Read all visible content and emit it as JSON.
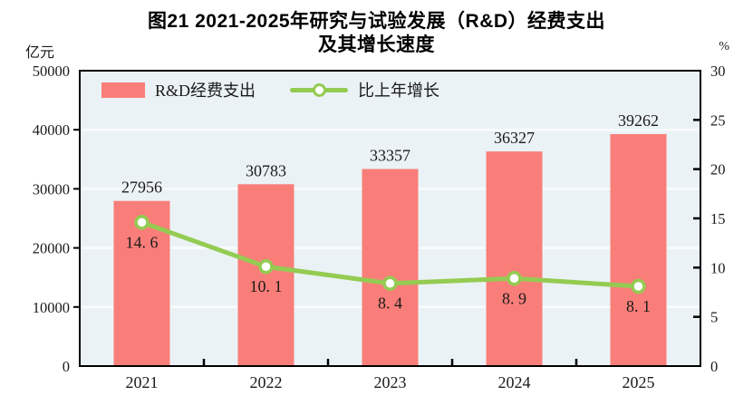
{
  "figure": {
    "title_line1": "图21  2021-2025年研究与试验发展（R&D）经费支出",
    "title_line2": "及其增长速度",
    "left_axis_unit": "亿元",
    "right_axis_unit": "%"
  },
  "legend": {
    "bar_label": "R&D经费支出",
    "line_label": "比上年增长"
  },
  "chart_data": {
    "type": "bar+line combo",
    "title": "图21 2021-2025年研究与试验发展（R&D）经费支出及其增长速度",
    "categories": [
      "2021",
      "2022",
      "2023",
      "2024",
      "2025"
    ],
    "series": [
      {
        "name": "R&D经费支出",
        "type": "bar",
        "axis": "left",
        "values": [
          27956,
          30783,
          33357,
          36327,
          39262
        ],
        "labels": [
          "27956",
          "30783",
          "33357",
          "36327",
          "39262"
        ],
        "color": "#f97e79"
      },
      {
        "name": "比上年增长",
        "type": "line",
        "axis": "right",
        "values": [
          14.6,
          10.1,
          8.4,
          8.9,
          8.1
        ],
        "labels": [
          "14. 6",
          "10. 1",
          "8. 4",
          "8. 9",
          "8. 1"
        ],
        "color": "#94cb52",
        "marker": "circle-open"
      }
    ],
    "left_axis": {
      "label": "亿元",
      "min": 0,
      "max": 50000,
      "ticks": [
        0,
        10000,
        20000,
        30000,
        40000,
        50000
      ]
    },
    "right_axis": {
      "label": "%",
      "min": 0,
      "max": 30,
      "ticks": [
        0,
        5,
        10,
        15,
        20,
        25,
        30
      ]
    },
    "grid": true,
    "gridline_interval_left_axis": 10000,
    "legend_position": "top-left-inside",
    "colors": {
      "bar": "#f97e79",
      "line": "#94cb52",
      "marker_fill": "#ffffff",
      "plot_bg": "#ebf2f5",
      "gridline": "#fafbfc",
      "axis": "#000000",
      "text": "#1a1a1a"
    }
  }
}
